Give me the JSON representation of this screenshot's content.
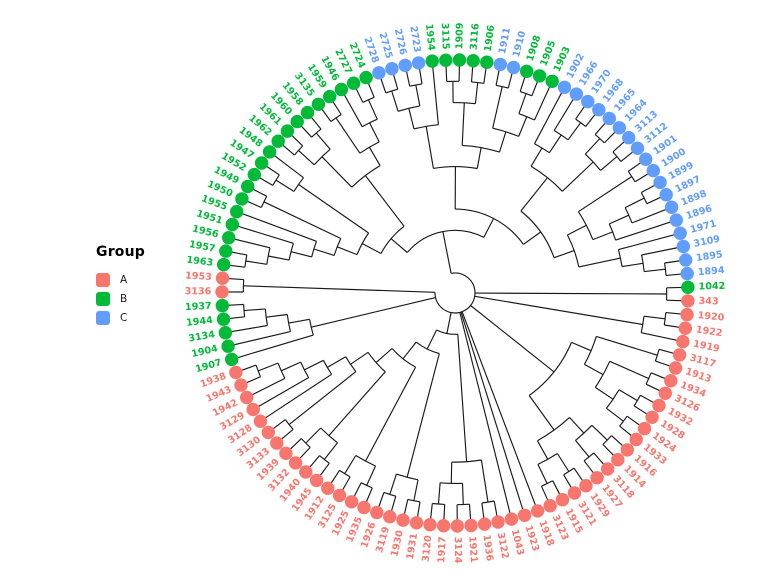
{
  "legend": {
    "title": "Group",
    "items": [
      {
        "label": "A",
        "color": "#F8766D"
      },
      {
        "label": "B",
        "color": "#00BA38"
      },
      {
        "label": "C",
        "color": "#619CFF"
      }
    ]
  },
  "chart_data": {
    "type": "dendrogram",
    "layout": "circular-cladogram",
    "title": "",
    "legend_title": "Group",
    "legend_position": "left",
    "tip_count": 107,
    "edge_color": "#1a1a1a",
    "groups": {
      "A": {
        "color": "#F8766D",
        "tips": [
          "343",
          "1920",
          "1922",
          "1919",
          "3117",
          "1913",
          "1934",
          "3126",
          "1932",
          "1928",
          "1924",
          "1933",
          "1916",
          "1914",
          "3118",
          "1927",
          "1929",
          "3121",
          "1915",
          "3123",
          "1918",
          "1923",
          "1043",
          "3122",
          "1936",
          "1921",
          "3124",
          "1917",
          "3120",
          "1931",
          "1930",
          "3119",
          "1926",
          "1935",
          "1925",
          "3125",
          "1912",
          "1945",
          "1940",
          "3132",
          "1939",
          "3133",
          "3130",
          "3128",
          "3129",
          "1942",
          "1943",
          "1938",
          "3136",
          "1953"
        ]
      },
      "B": {
        "color": "#00BA38",
        "tips": [
          "1963",
          "1957",
          "1956",
          "1951",
          "1955",
          "1950",
          "1949",
          "1952",
          "1947",
          "1948",
          "1962",
          "1961",
          "1960",
          "1958",
          "3135",
          "1959",
          "1946",
          "2727",
          "2724",
          "1954",
          "3115",
          "1909",
          "3116",
          "1906",
          "1908",
          "1905",
          "1903",
          "1042",
          "1907",
          "1904",
          "3134",
          "1944",
          "1937"
        ]
      },
      "C": {
        "color": "#619CFF",
        "tips": [
          "2728",
          "2725",
          "2726",
          "2723",
          "1911",
          "1910",
          "1902",
          "1966",
          "1970",
          "1968",
          "1965",
          "1964",
          "3113",
          "3112",
          "1901",
          "1900",
          "1899",
          "1897",
          "1898",
          "1896",
          "1971",
          "3109",
          "1895",
          "1894"
        ]
      }
    },
    "topology": [
      [
        [
          [
            [
              [
                [
                  [
                    [
                      "1963",
                      "1957"
                    ],
                    "1956"
                  ],
                  "1951"
                ],
                "1955"
              ],
              [
                "1950",
                "1949"
              ]
            ],
            [
              [
                "1952",
                "1947"
              ],
              "1948"
            ]
          ],
          [
            [
              [
                "1962",
                "1961"
              ],
              [
                "1960",
                "1958"
              ]
            ],
            [
              [
                "3135",
                "1959"
              ],
              [
                "1946",
                [
                  "2727",
                  "2724"
                ]
              ]
            ]
          ]
        ],
        [
          [
            [
              [
                [
                  "2728",
                  "2725"
                ],
                [
                  "2726",
                  "2723"
                ]
              ],
              "1954"
            ],
            [
              [
                [
                  "3115",
                  "1909"
                ],
                [
                  "3116",
                  "1906"
                ]
              ],
              [
                [
                  "1911",
                  "1910"
                ],
                [
                  [
                    "1908",
                    "1905"
                  ],
                  "1903"
                ]
              ]
            ]
          ],
          [
            [
              [
                "1902",
                [
                  "1966",
                  [
                    "1970",
                    "1968"
                  ]
                ]
              ],
              [
                [
                  "1965",
                  "1964"
                ],
                [
                  "3113",
                  "3112"
                ]
              ]
            ],
            [
              [
                [
                  "1901",
                  "1900"
                ],
                [
                  [
                    [
                      "1899",
                      "1897"
                    ],
                    "1898"
                  ],
                  "1896"
                ]
              ],
              [
                "1971",
                [
                  "3109",
                  [
                    "1895",
                    "1894"
                  ]
                ]
              ]
            ]
          ]
        ]
      ],
      [
        "1042",
        "343"
      ],
      [
        [
          "1920",
          "1922"
        ],
        "1919"
      ],
      [
        [
          [
            "3117",
            "1913"
          ],
          [
            [
              "1934",
              "3126"
            ],
            [
              [
                "1932",
                "1928"
              ],
              [
                "1924",
                "1933"
              ]
            ]
          ]
        ],
        [
          [
            [
              "1916",
              "1914"
            ],
            [
              "3118",
              "1927"
            ]
          ],
          [
            [
              "1929",
              "3121"
            ],
            [
              "1915",
              "3123"
            ]
          ]
        ]
      ],
      "1918",
      "1923",
      "1043",
      [
        [
          [
            "3122",
            "1936"
          ],
          [
            [
              "1921",
              "3124"
            ],
            [
              "1917",
              "3120"
            ]
          ]
        ],
        [
          [
            [
              "1931",
              "1930"
            ],
            [
              "3119",
              "1926"
            ]
          ],
          [
            [
              [
                "1935",
                "1925"
              ],
              [
                "3125",
                "1912"
              ]
            ],
            [
              [
                [
                  "1945",
                  "1940"
                ],
                [
                  "3132",
                  "1939"
                ]
              ],
              [
                [
                  "3133",
                  "3130"
                ],
                [
                  "3128",
                  [
                    "3129",
                    [
                      "1942",
                      [
                        "1943",
                        "1938"
                      ]
                    ]
                  ]
                ]
              ]
            ]
          ]
        ]
      ],
      [
        "1907",
        [
          "1904",
          [
            "3134",
            [
              "1944",
              "1937"
            ]
          ]
        ]
      ],
      [
        "3136",
        "1953"
      ]
    ]
  }
}
